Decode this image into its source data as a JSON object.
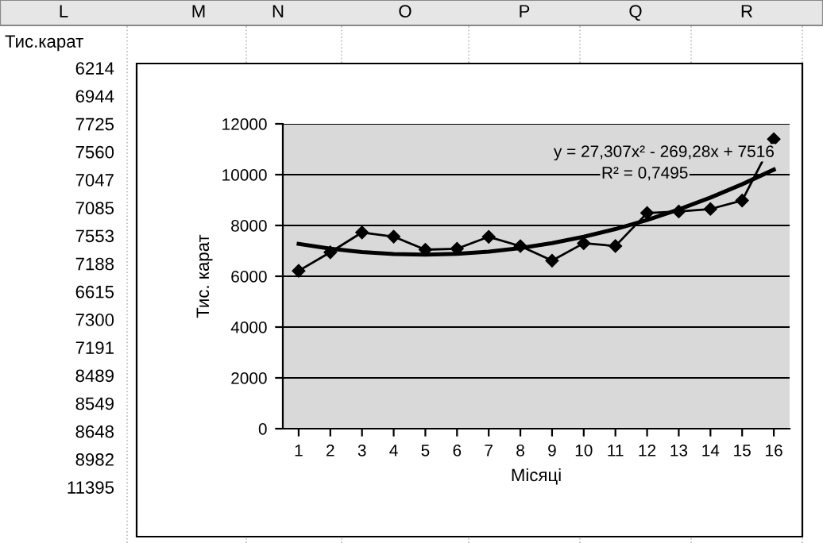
{
  "chart_data": {
    "type": "line",
    "xlabel": "Місяці",
    "ylabel": "Тис. карат",
    "categories": [
      "1",
      "2",
      "3",
      "4",
      "5",
      "6",
      "7",
      "8",
      "9",
      "10",
      "11",
      "12",
      "13",
      "14",
      "15",
      "16"
    ],
    "series": [
      {
        "color": "#000000",
        "marker": "diamond",
        "values": [
          6214,
          6944,
          7725,
          7560,
          7047,
          7085,
          7553,
          7188,
          6615,
          7300,
          7191,
          8489,
          8549,
          8648,
          8982,
          11395
        ]
      },
      {
        "color": "#000000",
        "marker": "none",
        "values": [
          7274,
          7087,
          6954,
          6876,
          6852,
          6883,
          6969,
          7109,
          7304,
          7554,
          7858,
          8217,
          8630,
          9098,
          9621,
          10198
        ]
      }
    ],
    "ylim": [
      0,
      12000
    ],
    "yticks": [
      0,
      2000,
      4000,
      6000,
      8000,
      10000,
      12000
    ],
    "grid": "y",
    "annotations": [
      "L",
      "M",
      "N",
      "O",
      "P",
      "Q",
      "R",
      "Тис.карат",
      "y = 27,307x² - 269,28x + 7516",
      "R² = 0,7495",
      "6214",
      "6944",
      "7725",
      "7560",
      "7047",
      "7085",
      "7553",
      "7188",
      "6615",
      "7300",
      "7191",
      "8489",
      "8549",
      "8648",
      "8982",
      "11395"
    ]
  }
}
